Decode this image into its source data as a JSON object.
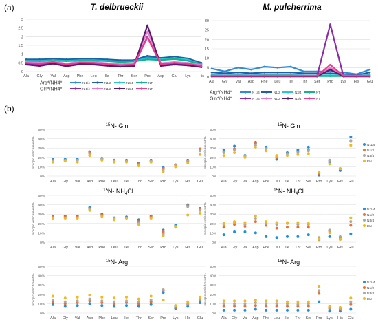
{
  "panel_labels": {
    "a": "(a)",
    "b": "(b)"
  },
  "species": {
    "left": "T. delbrueckii",
    "right": "M. pulcherrima"
  },
  "legend": {
    "row_arg": "Arg*/NH4*",
    "row_gln": "Gln*/NH4*",
    "items": [
      "N 1/4",
      "N1/2",
      "N3/4",
      "NT"
    ]
  },
  "colors": {
    "arg": [
      "#2e8bd9",
      "#1f5fa8",
      "#28c6d6",
      "#14b28a"
    ],
    "gln": [
      "#8a2aa8",
      "#e47bd0",
      "#5a1a6e",
      "#e83d8f"
    ],
    "scatter": [
      "#1f8fe0",
      "#ef6f2f",
      "#a9a9a9",
      "#f4b81e"
    ],
    "grid": "#d9d9d9",
    "axis": "#bfbfbf"
  },
  "scatter_legend": [
    "N 1/4",
    "N1/2",
    "N3/4",
    "EN"
  ],
  "titles_b": {
    "gln_prefix": "15",
    "gln_rest": "N- Gln",
    "nh4_prefix": "15",
    "nh4_rest": "N- NH",
    "nh4_sub": "4",
    "nh4_tail": "Cl",
    "arg_prefix": "15",
    "arg_rest": "N- Arg"
  },
  "ylabel_b": "Isotopic enrichment %",
  "chart_data": [
    {
      "type": "line",
      "panel": "a-left",
      "categories": [
        "Ala",
        "Gly",
        "Val",
        "Asp",
        "Phe",
        "Leu",
        "Ile",
        "Thr",
        "Ser",
        "Pro",
        "Asp",
        "Glu",
        "Lys",
        "His"
      ],
      "ylim": [
        0,
        3
      ],
      "yticks": [
        0,
        0.5,
        1,
        1.5,
        2,
        2.5,
        3
      ],
      "grid": true,
      "series": [
        {
          "name": "N 1/4",
          "group": "arg",
          "values": [
            0.65,
            0.65,
            0.68,
            0.65,
            0.68,
            0.68,
            0.65,
            0.6,
            0.62,
            0.85,
            0.72,
            0.8,
            0.7,
            0.45
          ]
        },
        {
          "name": "N1/2",
          "group": "arg",
          "values": [
            0.7,
            0.7,
            0.72,
            0.7,
            0.72,
            0.72,
            0.7,
            0.65,
            0.66,
            0.9,
            0.78,
            0.85,
            0.75,
            0.5
          ]
        },
        {
          "name": "N3/4",
          "group": "arg",
          "values": [
            0.62,
            0.62,
            0.65,
            0.62,
            0.65,
            0.65,
            0.62,
            0.58,
            0.6,
            0.75,
            0.7,
            0.78,
            0.68,
            0.42
          ]
        },
        {
          "name": "NT",
          "group": "arg",
          "values": [
            0.6,
            0.6,
            0.62,
            0.6,
            0.62,
            0.62,
            0.6,
            0.55,
            0.58,
            0.7,
            0.66,
            0.72,
            0.62,
            0.4
          ]
        },
        {
          "name": "N 1/4",
          "group": "gln",
          "values": [
            0.45,
            0.38,
            0.5,
            0.35,
            0.48,
            0.45,
            0.38,
            0.32,
            0.35,
            2.0,
            0.38,
            0.45,
            0.4,
            0.3
          ]
        },
        {
          "name": "N1/2",
          "group": "gln",
          "values": [
            0.55,
            0.5,
            0.6,
            0.45,
            0.58,
            0.55,
            0.48,
            0.42,
            0.45,
            2.3,
            0.48,
            0.55,
            0.5,
            0.38
          ]
        },
        {
          "name": "N3/4",
          "group": "gln",
          "values": [
            0.4,
            0.32,
            0.45,
            0.3,
            0.42,
            0.4,
            0.33,
            0.28,
            0.3,
            2.65,
            0.32,
            0.4,
            0.35,
            0.25
          ]
        },
        {
          "name": "NT",
          "group": "gln",
          "values": [
            0.5,
            0.45,
            0.55,
            0.4,
            0.52,
            0.5,
            0.42,
            0.36,
            0.4,
            1.95,
            0.42,
            0.5,
            0.45,
            0.32
          ]
        }
      ]
    },
    {
      "type": "line",
      "panel": "a-right",
      "categories": [
        "Ala",
        "Gly",
        "Val",
        "Asp",
        "Phe",
        "Leu",
        "Ile",
        "Thr",
        "Ser",
        "Pro",
        "Lys",
        "His",
        "Glu"
      ],
      "ylim": [
        0,
        30
      ],
      "yticks": [
        0,
        5,
        10,
        15,
        20,
        25,
        30
      ],
      "grid": true,
      "series": [
        {
          "name": "N 1/4",
          "group": "arg",
          "values": [
            4.5,
            3,
            5,
            4,
            5.5,
            5,
            5.5,
            3,
            3,
            3,
            2.5,
            1.5,
            4
          ]
        },
        {
          "name": "N1/2",
          "group": "arg",
          "values": [
            2.5,
            2,
            2.5,
            2,
            2.5,
            2.5,
            2.5,
            2,
            2,
            2,
            1.5,
            1,
            2.5
          ]
        },
        {
          "name": "N3/4",
          "group": "arg",
          "values": [
            1.5,
            1,
            1.5,
            1,
            1.5,
            1.5,
            1.5,
            1,
            1,
            1,
            1,
            0.5,
            1.5
          ]
        },
        {
          "name": "NT",
          "group": "arg",
          "values": [
            1,
            0.5,
            1,
            0.5,
            1,
            1,
            1,
            0.5,
            0.5,
            0.5,
            0.5,
            0.3,
            1
          ]
        },
        {
          "name": "N 1/4",
          "group": "gln",
          "values": [
            0.5,
            0.5,
            0.5,
            0.5,
            0.5,
            0.5,
            0.5,
            0.5,
            0.5,
            28,
            0.5,
            0.5,
            0.5
          ]
        },
        {
          "name": "N1/2",
          "group": "gln",
          "values": [
            0.8,
            0.8,
            0.8,
            0.8,
            0.8,
            0.8,
            0.8,
            0.8,
            0.8,
            5,
            0.8,
            0.8,
            0.8
          ]
        },
        {
          "name": "N3/4",
          "group": "gln",
          "values": [
            0.3,
            0.3,
            0.3,
            0.3,
            0.3,
            0.3,
            0.3,
            0.3,
            0.3,
            4,
            0.3,
            0.3,
            0.3
          ]
        },
        {
          "name": "NT",
          "group": "gln",
          "values": [
            0.6,
            0.6,
            0.6,
            0.6,
            0.6,
            0.6,
            0.6,
            0.6,
            0.6,
            6.5,
            0.6,
            0.6,
            0.6
          ]
        }
      ]
    },
    {
      "type": "scatter",
      "panel": "b-left-gln",
      "categories": [
        "Ala",
        "Gly",
        "Val",
        "Asp",
        "Phe",
        "Leu",
        "Ile",
        "Thr",
        "Ser",
        "Pro",
        "Lys",
        "His",
        "Glu"
      ],
      "ylim": [
        0,
        50
      ],
      "yticks": [
        0,
        10,
        20,
        30,
        40,
        50
      ],
      "tick_suffix": "%",
      "series": [
        {
          "name": "N 1/4",
          "values": [
            18,
            18,
            18,
            26,
            19,
            17,
            17,
            14,
            17,
            9,
            12,
            17,
            28
          ]
        },
        {
          "name": "N1/2",
          "values": [
            17,
            17,
            17,
            25,
            18,
            17,
            16,
            13,
            16,
            8,
            12,
            16,
            29
          ]
        },
        {
          "name": "N3/4",
          "values": [
            16,
            17,
            17,
            24,
            18,
            16,
            16,
            12,
            16,
            7,
            11,
            16,
            27
          ]
        },
        {
          "name": "EN",
          "values": [
            15,
            16,
            15,
            22,
            17,
            15,
            15,
            11,
            15,
            5,
            10,
            14,
            23
          ]
        }
      ]
    },
    {
      "type": "scatter",
      "panel": "b-right-gln",
      "categories": [
        "Ala",
        "Gly",
        "Val",
        "Asp",
        "Phe",
        "Leu",
        "Ile",
        "Thr",
        "Ser",
        "Pro",
        "Lys",
        "His",
        "Glu"
      ],
      "ylim": [
        0,
        50
      ],
      "yticks": [
        0,
        10,
        20,
        30,
        40,
        50
      ],
      "tick_suffix": "%",
      "series": [
        {
          "name": "N 1/4",
          "values": [
            28,
            32,
            22,
            36,
            31,
            18,
            25,
            28,
            31,
            1,
            15,
            6,
            42
          ]
        },
        {
          "name": "N1/2",
          "values": [
            26,
            29,
            21,
            35,
            30,
            20,
            24,
            26,
            28,
            3,
            17,
            8,
            38
          ]
        },
        {
          "name": "N3/4",
          "values": [
            25,
            28,
            21,
            33,
            29,
            21,
            24,
            25,
            27,
            4,
            17,
            8,
            37
          ]
        },
        {
          "name": "EN",
          "values": [
            22,
            25,
            20,
            31,
            27,
            22,
            22,
            23,
            24,
            4,
            13,
            8,
            33
          ]
        }
      ]
    },
    {
      "type": "scatter",
      "panel": "b-left-nh4",
      "categories": [
        "Ala",
        "Gly",
        "Val",
        "Asp",
        "Phe",
        "Leu",
        "Ile",
        "Thr",
        "Ser",
        "Pro",
        "Lys",
        "His",
        "Glu"
      ],
      "ylim": [
        0,
        50
      ],
      "yticks": [
        0,
        10,
        20,
        30,
        40,
        50
      ],
      "tick_suffix": "%",
      "series": [
        {
          "name": "N 1/4",
          "values": [
            28,
            28,
            28,
            37,
            30,
            26,
            27,
            24,
            28,
            13,
            18,
            40,
            36
          ]
        },
        {
          "name": "N1/2",
          "values": [
            27,
            27,
            27,
            36,
            29,
            25,
            26,
            22,
            27,
            11,
            17,
            39,
            35
          ]
        },
        {
          "name": "N3/4",
          "values": [
            26,
            26,
            26,
            35,
            28,
            25,
            26,
            21,
            26,
            9,
            17,
            38,
            34
          ]
        },
        {
          "name": "EN",
          "values": [
            25,
            25,
            25,
            34,
            27,
            24,
            25,
            19,
            25,
            7,
            16,
            29,
            31
          ]
        }
      ]
    },
    {
      "type": "scatter",
      "panel": "b-right-nh4",
      "categories": [
        "Ala",
        "Gly",
        "Val",
        "Asp",
        "Phe",
        "Leu",
        "Ile",
        "Thr",
        "Ser",
        "Pro",
        "Lys",
        "His",
        "Glu"
      ],
      "ylim": [
        0,
        50
      ],
      "yticks": [
        0,
        10,
        20,
        30,
        40,
        50
      ],
      "tick_suffix": "%",
      "series": [
        {
          "name": "N 1/4",
          "values": [
            8,
            11,
            11,
            10,
            6,
            5,
            6,
            6,
            8,
            2,
            6,
            3,
            9
          ]
        },
        {
          "name": "N1/2",
          "values": [
            16,
            19,
            17,
            22,
            18,
            15,
            16,
            16,
            16,
            4,
            12,
            5,
            18
          ]
        },
        {
          "name": "N3/4",
          "values": [
            19,
            21,
            19,
            25,
            20,
            19,
            20,
            19,
            19,
            5,
            13,
            6,
            22
          ]
        },
        {
          "name": "EN",
          "values": [
            20,
            22,
            21,
            28,
            22,
            21,
            21,
            21,
            20,
            3,
            10,
            3,
            26
          ]
        }
      ]
    },
    {
      "type": "scatter",
      "panel": "b-left-arg",
      "categories": [
        "Ala",
        "Gly",
        "Val",
        "Asp",
        "Phe",
        "Leu",
        "Ile",
        "Thr",
        "Ser",
        "Pro",
        "Lys",
        "His",
        "Glu"
      ],
      "ylim": [
        0,
        50
      ],
      "yticks": [
        0,
        10,
        20,
        30,
        40,
        50
      ],
      "tick_suffix": "%",
      "series": [
        {
          "name": "N 1/4",
          "values": [
            9,
            7,
            8,
            10,
            8,
            7,
            8,
            7,
            9,
            22,
            5,
            7,
            11
          ]
        },
        {
          "name": "N1/2",
          "values": [
            12,
            10,
            11,
            13,
            11,
            10,
            11,
            10,
            12,
            24,
            6,
            9,
            14
          ]
        },
        {
          "name": "N3/4",
          "values": [
            14,
            12,
            13,
            15,
            13,
            12,
            13,
            12,
            14,
            25,
            7,
            10,
            15
          ]
        },
        {
          "name": "EN",
          "values": [
            18,
            16,
            17,
            19,
            17,
            16,
            17,
            15,
            18,
            14,
            8,
            12,
            17
          ]
        }
      ]
    },
    {
      "type": "scatter",
      "panel": "b-right-arg",
      "categories": [
        "Ala",
        "Gly",
        "Val",
        "Asp",
        "Phe",
        "Leu",
        "Ile",
        "Thr",
        "Ser",
        "Pro",
        "Lys",
        "His",
        "Glu"
      ],
      "ylim": [
        0,
        50
      ],
      "yticks": [
        0,
        10,
        20,
        30,
        40,
        50
      ],
      "tick_suffix": "%",
      "series": [
        {
          "name": "N 1/4",
          "values": [
            3,
            3,
            3,
            4,
            3,
            3,
            3,
            3,
            3,
            12,
            2,
            2,
            4
          ]
        },
        {
          "name": "N1/2",
          "values": [
            7,
            7,
            7,
            8,
            7,
            7,
            7,
            7,
            7,
            21,
            5,
            4,
            9
          ]
        },
        {
          "name": "N3/4",
          "values": [
            10,
            10,
            10,
            11,
            10,
            10,
            10,
            9,
            10,
            24,
            6,
            5,
            12
          ]
        },
        {
          "name": "EN",
          "values": [
            13,
            13,
            13,
            14,
            13,
            13,
            12,
            12,
            12,
            28,
            7,
            6,
            16
          ]
        }
      ]
    }
  ]
}
